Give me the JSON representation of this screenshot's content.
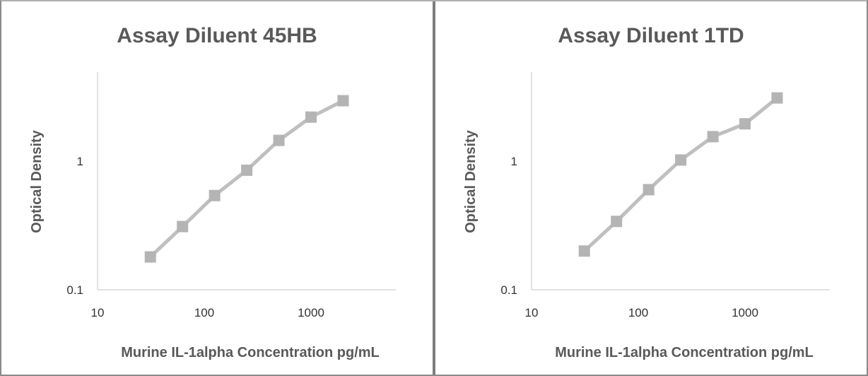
{
  "chart_data": [
    {
      "type": "line",
      "title": "Assay Diluent 45HB",
      "xlabel": "Murine IL-1alpha Concentration pg/mL",
      "ylabel": "Optical Density",
      "x_scale": "log",
      "y_scale": "log",
      "xlim": [
        10,
        10000
      ],
      "ylim": [
        0.1,
        10
      ],
      "x_tick_labels": [
        "10",
        "100",
        "1000"
      ],
      "y_tick_labels": [
        "0.1",
        "1"
      ],
      "grid": false,
      "series_color": "#bfbfbf",
      "marker_color": "#b4b4b4",
      "series": [
        {
          "x": [
            31.25,
            62.5,
            125,
            250,
            500,
            1000,
            2000
          ],
          "y": [
            0.18,
            0.31,
            0.54,
            0.85,
            1.45,
            2.2,
            2.95
          ]
        }
      ]
    },
    {
      "type": "line",
      "title": "Assay Diluent 1TD",
      "xlabel": "Murine IL-1alpha Concentration pg/mL",
      "ylabel": "Optical Density",
      "x_scale": "log",
      "y_scale": "log",
      "xlim": [
        10,
        10000
      ],
      "ylim": [
        0.1,
        10
      ],
      "x_tick_labels": [
        "10",
        "100",
        "1000"
      ],
      "y_tick_labels": [
        "0.1",
        "1"
      ],
      "grid": false,
      "series_color": "#bfbfbf",
      "marker_color": "#b4b4b4",
      "series": [
        {
          "x": [
            31.25,
            62.5,
            125,
            250,
            500,
            1000,
            2000
          ],
          "y": [
            0.2,
            0.34,
            0.6,
            1.02,
            1.55,
            1.95,
            3.1
          ]
        }
      ]
    }
  ]
}
